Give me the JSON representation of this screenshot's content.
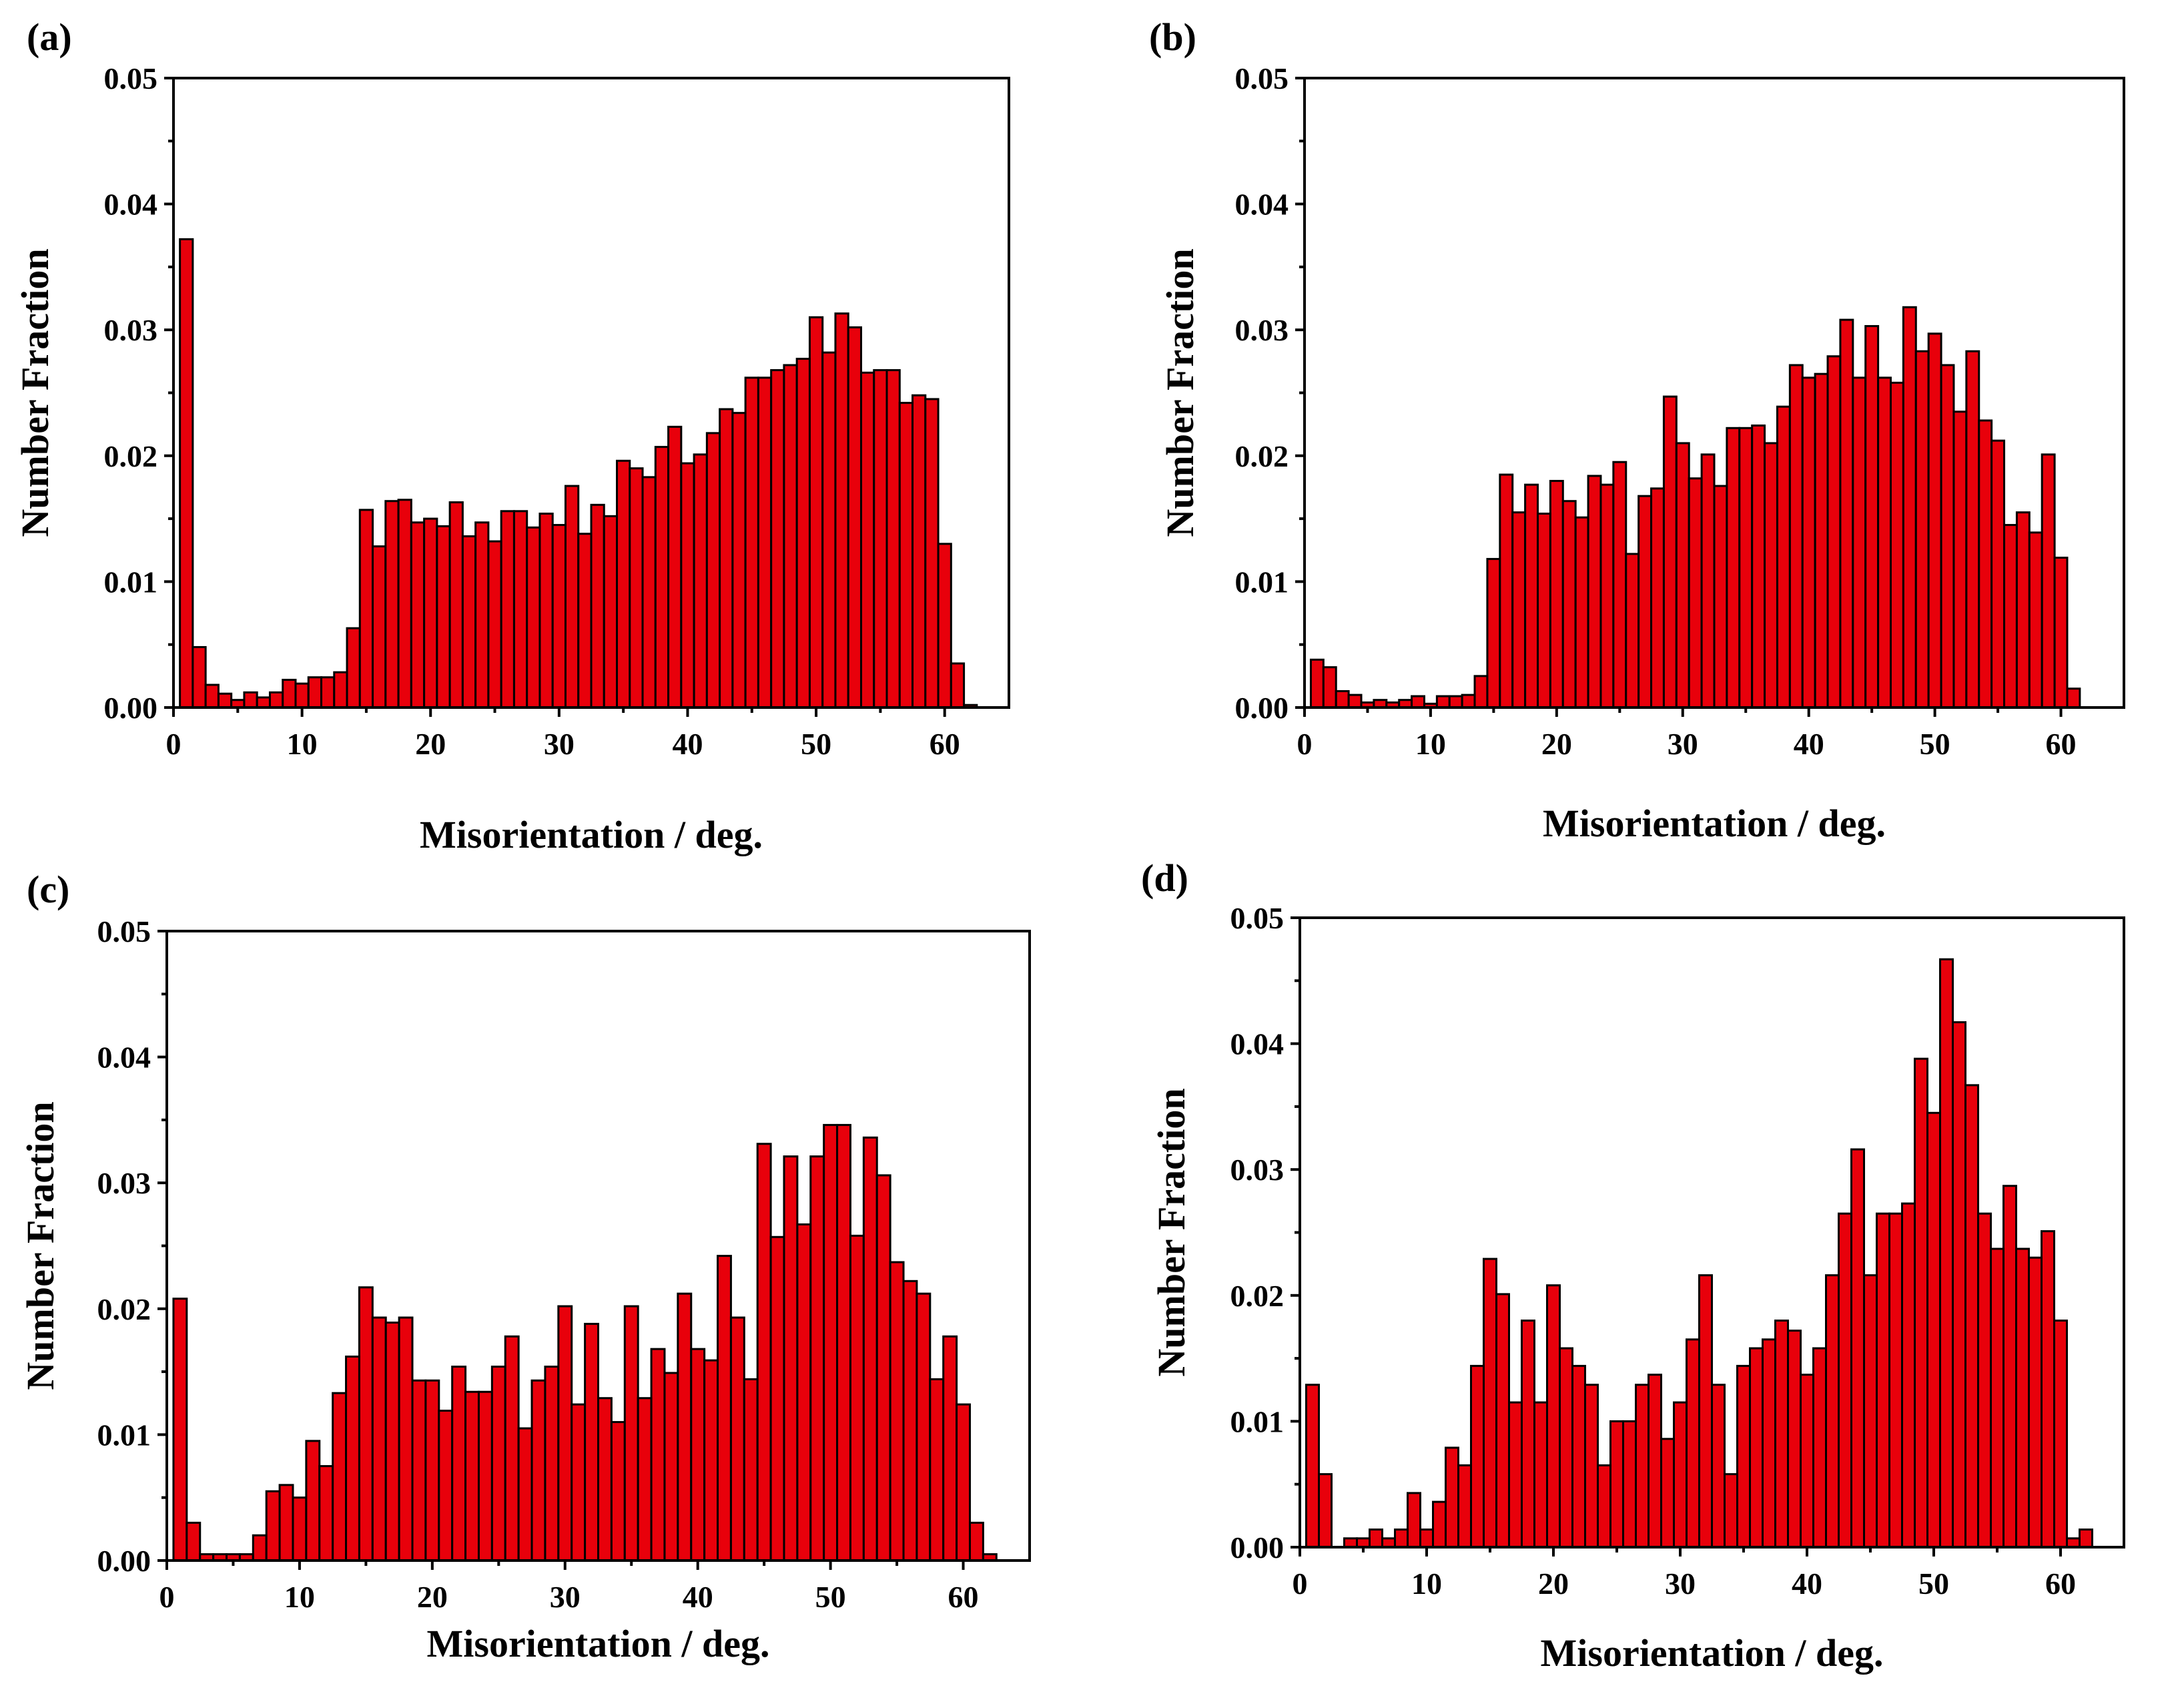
{
  "chart_data": [
    {
      "panel": "(a)",
      "type": "bar",
      "xlabel": "Misorientation / deg.",
      "ylabel": "Number Fraction",
      "xlim": [
        0,
        65
      ],
      "ylim": [
        0,
        0.05
      ],
      "xticks": [
        "0",
        "10",
        "20",
        "30",
        "40",
        "50",
        "60"
      ],
      "yticks": [
        "0.00",
        "0.01",
        "0.02",
        "0.03",
        "0.04",
        "0.05"
      ],
      "bar_color": "#e8000b",
      "x": [
        1,
        2,
        3,
        4,
        5,
        6,
        7,
        8,
        9,
        10,
        11,
        12,
        13,
        14,
        15,
        16,
        17,
        18,
        19,
        20,
        21,
        22,
        23,
        24,
        25,
        26,
        27,
        28,
        29,
        30,
        31,
        32,
        33,
        34,
        35,
        36,
        37,
        38,
        39,
        40,
        41,
        42,
        43,
        44,
        45,
        46,
        47,
        48,
        49,
        50,
        51,
        52,
        53,
        54,
        55,
        56,
        57,
        58,
        59,
        60,
        61,
        62,
        63
      ],
      "values": [
        0.0372,
        0.0048,
        0.0018,
        0.0011,
        0.0006,
        0.0012,
        0.0008,
        0.0012,
        0.0022,
        0.0019,
        0.0024,
        0.0024,
        0.0028,
        0.0063,
        0.0157,
        0.0128,
        0.0164,
        0.0165,
        0.0147,
        0.015,
        0.0144,
        0.0163,
        0.0136,
        0.0147,
        0.0132,
        0.0156,
        0.0156,
        0.0143,
        0.0154,
        0.0145,
        0.0176,
        0.0138,
        0.0161,
        0.0152,
        0.0196,
        0.019,
        0.0183,
        0.0207,
        0.0223,
        0.0194,
        0.0201,
        0.0218,
        0.0237,
        0.0234,
        0.0262,
        0.0262,
        0.0268,
        0.0272,
        0.0277,
        0.031,
        0.0282,
        0.0313,
        0.0302,
        0.0266,
        0.0268,
        0.0268,
        0.0242,
        0.0248,
        0.0245,
        0.013,
        0.0035,
        0.0002,
        0.0
      ]
    },
    {
      "panel": "(b)",
      "type": "bar",
      "xlabel": "Misorientation / deg.",
      "ylabel": "Number Fraction",
      "xlim": [
        0,
        65
      ],
      "ylim": [
        0,
        0.05
      ],
      "xticks": [
        "0",
        "10",
        "20",
        "30",
        "40",
        "50",
        "60"
      ],
      "yticks": [
        "0.00",
        "0.01",
        "0.02",
        "0.03",
        "0.04",
        "0.05"
      ],
      "bar_color": "#e8000b",
      "x": [
        1,
        2,
        3,
        4,
        5,
        6,
        7,
        8,
        9,
        10,
        11,
        12,
        13,
        14,
        15,
        16,
        17,
        18,
        19,
        20,
        21,
        22,
        23,
        24,
        25,
        26,
        27,
        28,
        29,
        30,
        31,
        32,
        33,
        34,
        35,
        36,
        37,
        38,
        39,
        40,
        41,
        42,
        43,
        44,
        45,
        46,
        47,
        48,
        49,
        50,
        51,
        52,
        53,
        54,
        55,
        56,
        57,
        58,
        59,
        60,
        61,
        62
      ],
      "values": [
        0.0038,
        0.0032,
        0.0013,
        0.001,
        0.0004,
        0.0006,
        0.0004,
        0.0006,
        0.0009,
        0.0003,
        0.0009,
        0.0009,
        0.001,
        0.0025,
        0.0118,
        0.0185,
        0.0155,
        0.0177,
        0.0154,
        0.018,
        0.0164,
        0.0151,
        0.0184,
        0.0177,
        0.0195,
        0.0122,
        0.0168,
        0.0174,
        0.0247,
        0.021,
        0.0182,
        0.0201,
        0.0176,
        0.0222,
        0.0222,
        0.0224,
        0.021,
        0.0239,
        0.0272,
        0.0262,
        0.0265,
        0.0279,
        0.0308,
        0.0262,
        0.0303,
        0.0262,
        0.0258,
        0.0318,
        0.0283,
        0.0297,
        0.0272,
        0.0235,
        0.0283,
        0.0228,
        0.0212,
        0.0145,
        0.0155,
        0.0139,
        0.0201,
        0.0119,
        0.0015,
        0.0
      ]
    },
    {
      "panel": "(c)",
      "type": "bar",
      "xlabel": "Misorientation / deg.",
      "ylabel": "Number Fraction",
      "xlim": [
        0,
        65
      ],
      "ylim": [
        0,
        0.05
      ],
      "xticks": [
        "0",
        "10",
        "20",
        "30",
        "40",
        "50",
        "60"
      ],
      "yticks": [
        "0.00",
        "0.01",
        "0.02",
        "0.03",
        "0.04",
        "0.05"
      ],
      "bar_color": "#e8000b",
      "x": [
        1,
        2,
        3,
        4,
        5,
        6,
        7,
        8,
        9,
        10,
        11,
        12,
        13,
        14,
        15,
        16,
        17,
        18,
        19,
        20,
        21,
        22,
        23,
        24,
        25,
        26,
        27,
        28,
        29,
        30,
        31,
        32,
        33,
        34,
        35,
        36,
        37,
        38,
        39,
        40,
        41,
        42,
        43,
        44,
        45,
        46,
        47,
        48,
        49,
        50,
        51,
        52,
        53,
        54,
        55,
        56,
        57,
        58,
        59,
        60,
        61,
        62,
        63
      ],
      "values": [
        0.0208,
        0.003,
        0.0005,
        0.0005,
        0.0005,
        0.0005,
        0.002,
        0.0055,
        0.006,
        0.005,
        0.0095,
        0.0075,
        0.0133,
        0.0162,
        0.0217,
        0.0193,
        0.0189,
        0.0193,
        0.0143,
        0.0143,
        0.0119,
        0.0154,
        0.0134,
        0.0134,
        0.0154,
        0.0178,
        0.0105,
        0.0143,
        0.0154,
        0.0202,
        0.0124,
        0.0188,
        0.0129,
        0.011,
        0.0202,
        0.0129,
        0.0168,
        0.0149,
        0.0212,
        0.0168,
        0.0159,
        0.0242,
        0.0193,
        0.0144,
        0.0331,
        0.0257,
        0.0321,
        0.0267,
        0.0321,
        0.0346,
        0.0346,
        0.0258,
        0.0336,
        0.0306,
        0.0237,
        0.0222,
        0.0212,
        0.0144,
        0.0178,
        0.0124,
        0.003,
        0.0005,
        0.0
      ]
    },
    {
      "panel": "(d)",
      "type": "bar",
      "xlabel": "Misorientation / deg.",
      "ylabel": "Number Fraction",
      "xlim": [
        0,
        65
      ],
      "ylim": [
        0,
        0.05
      ],
      "xticks": [
        "0",
        "10",
        "20",
        "30",
        "40",
        "50",
        "60"
      ],
      "yticks": [
        "0.00",
        "0.01",
        "0.02",
        "0.03",
        "0.04",
        "0.05"
      ],
      "bar_color": "#e8000b",
      "x": [
        1,
        2,
        3,
        4,
        5,
        6,
        7,
        8,
        9,
        10,
        11,
        12,
        13,
        14,
        15,
        16,
        17,
        18,
        19,
        20,
        21,
        22,
        23,
        24,
        25,
        26,
        27,
        28,
        29,
        30,
        31,
        32,
        33,
        34,
        35,
        36,
        37,
        38,
        39,
        40,
        41,
        42,
        43,
        44,
        45,
        46,
        47,
        48,
        49,
        50,
        51,
        52,
        53,
        54,
        55,
        56,
        57,
        58,
        59,
        60,
        61,
        62,
        63
      ],
      "values": [
        0.0129,
        0.0058,
        0.0,
        0.0007,
        0.0007,
        0.0014,
        0.0007,
        0.0014,
        0.0043,
        0.0014,
        0.0036,
        0.0079,
        0.0065,
        0.0144,
        0.0229,
        0.0201,
        0.0115,
        0.018,
        0.0115,
        0.0208,
        0.0158,
        0.0144,
        0.0129,
        0.0065,
        0.01,
        0.01,
        0.0129,
        0.0137,
        0.0086,
        0.0115,
        0.0165,
        0.0216,
        0.0129,
        0.0058,
        0.0144,
        0.0158,
        0.0165,
        0.018,
        0.0172,
        0.0137,
        0.0158,
        0.0216,
        0.0265,
        0.0316,
        0.0216,
        0.0265,
        0.0265,
        0.0273,
        0.0388,
        0.0345,
        0.0467,
        0.0417,
        0.0367,
        0.0265,
        0.0237,
        0.0287,
        0.0237,
        0.023,
        0.0251,
        0.018,
        0.0007,
        0.0014,
        0.0
      ]
    }
  ]
}
